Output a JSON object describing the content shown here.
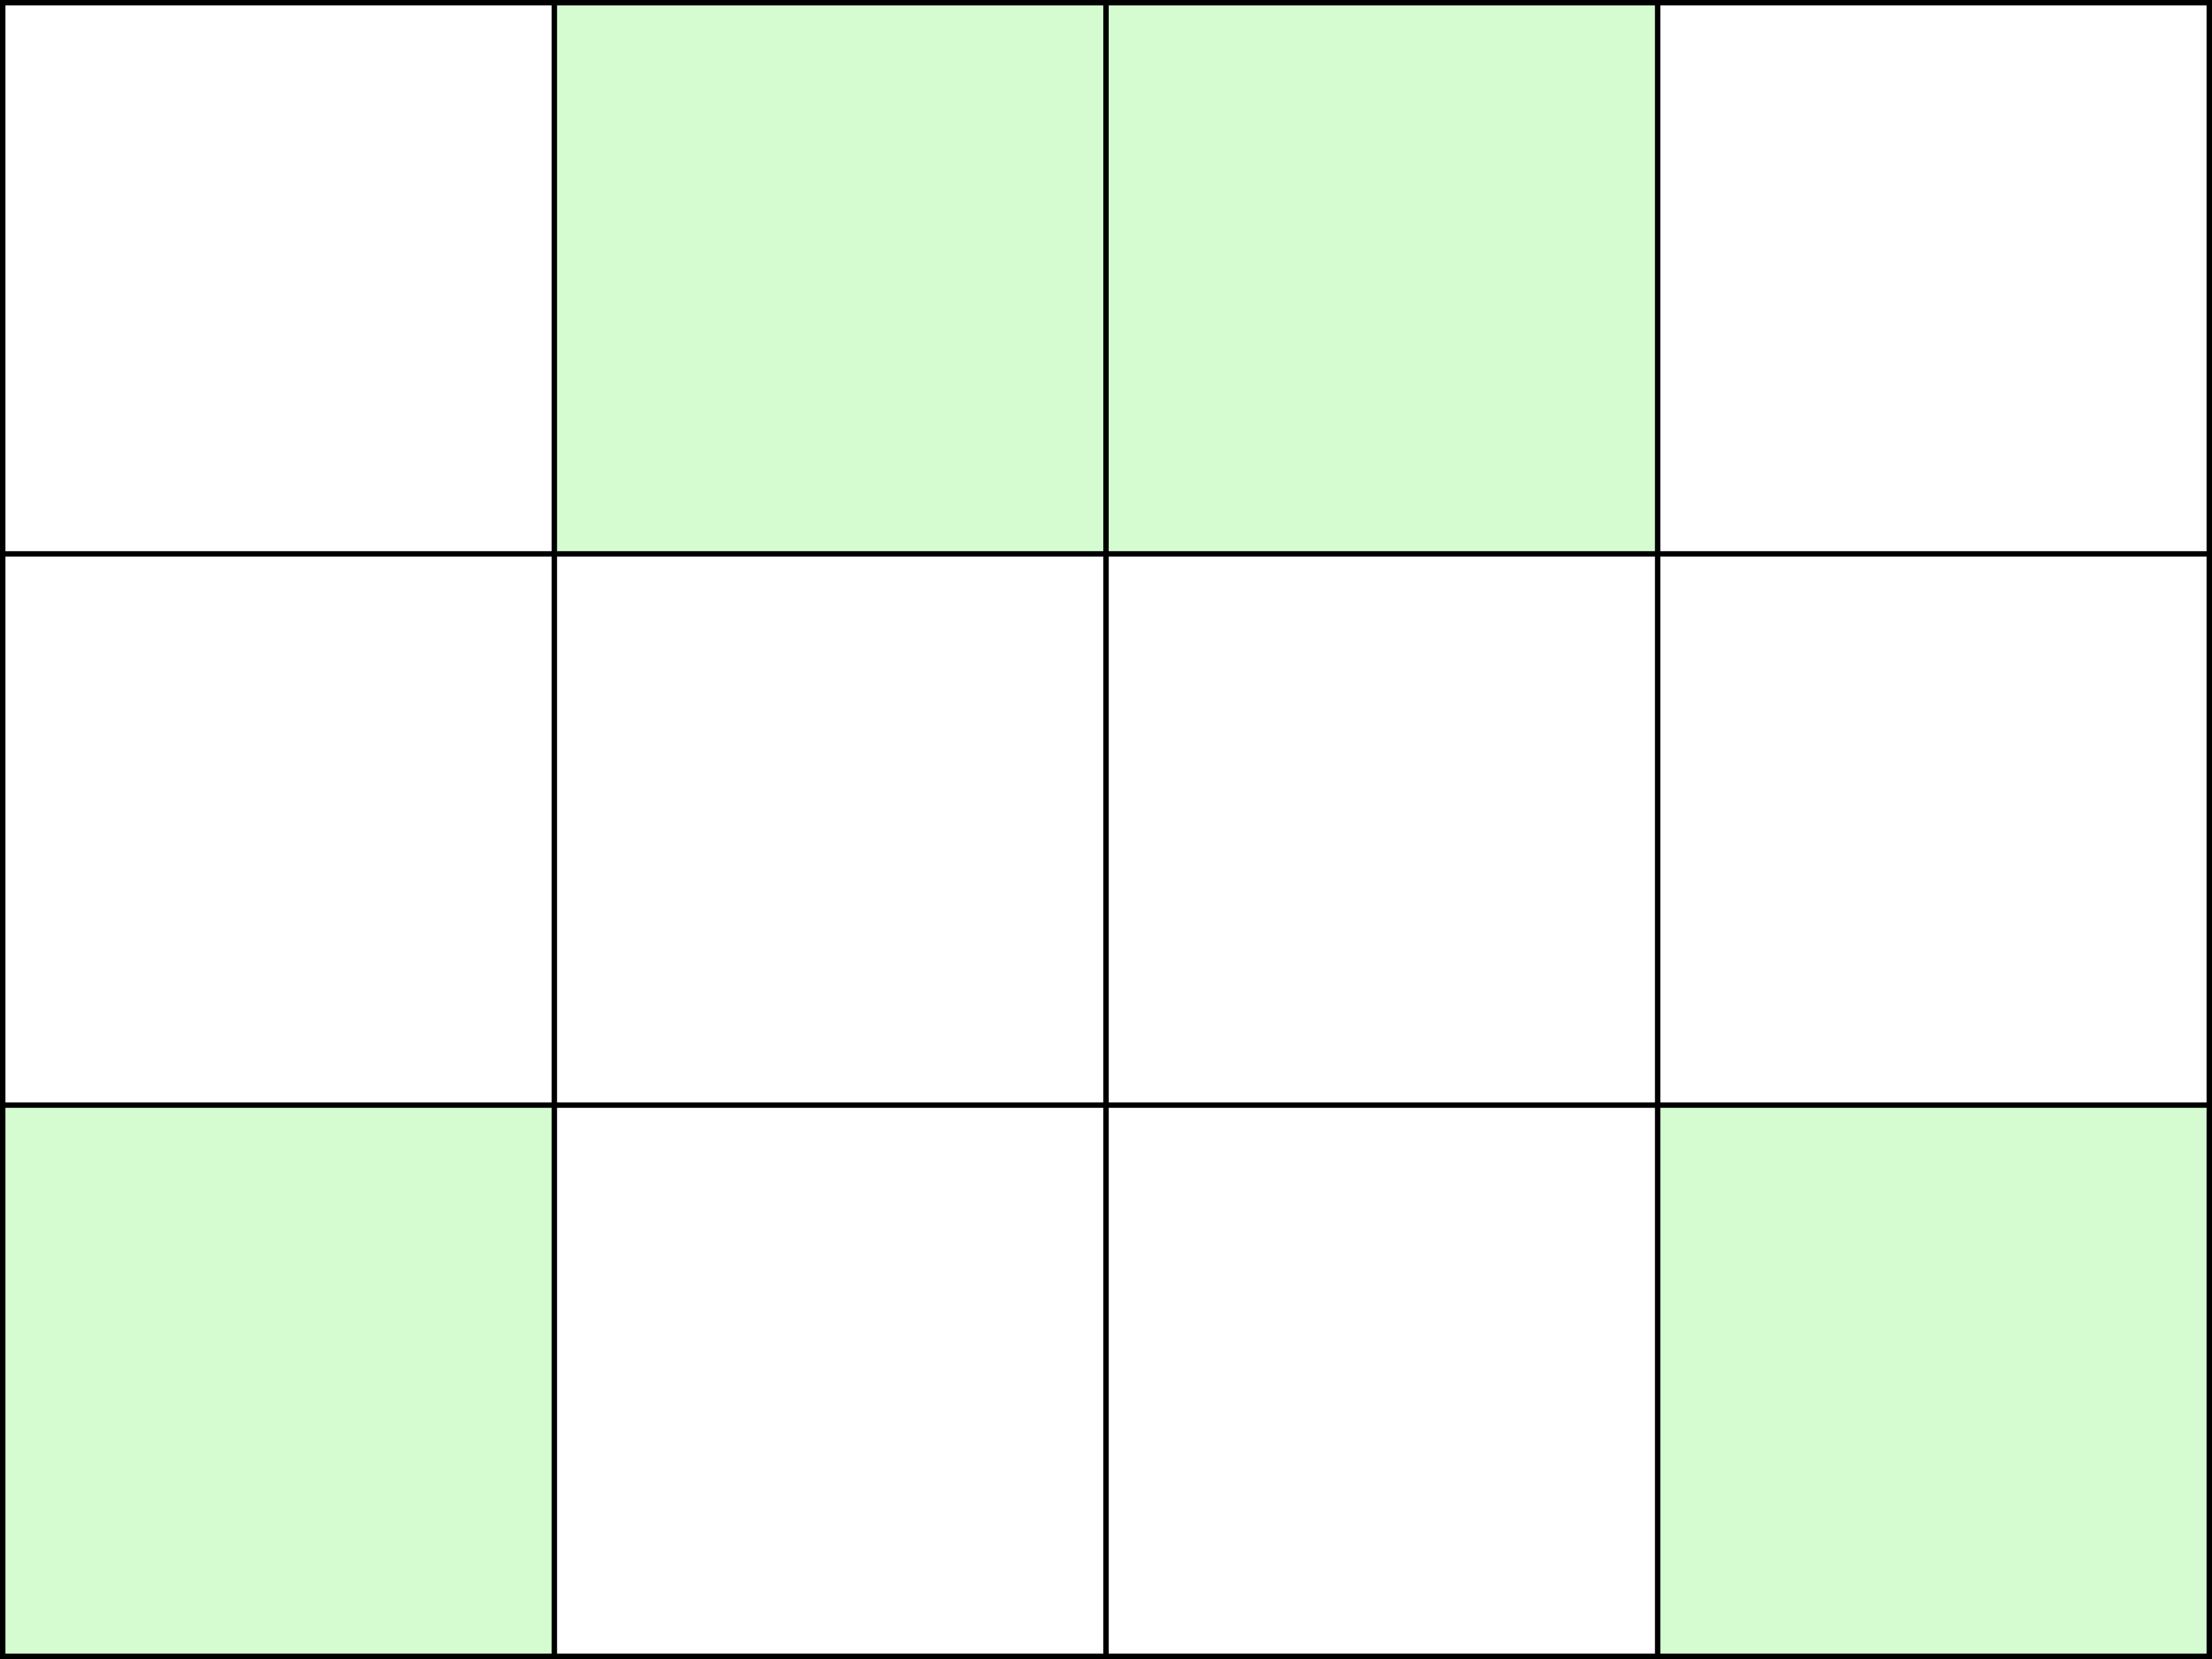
{
  "grid": {
    "rows": 3,
    "cols": 4,
    "fill_color": "#d5fbd1",
    "empty_color": "#ffffff",
    "line_color": "#000000",
    "cells": [
      [
        false,
        true,
        true,
        false
      ],
      [
        false,
        false,
        false,
        false
      ],
      [
        true,
        false,
        false,
        true
      ]
    ]
  }
}
